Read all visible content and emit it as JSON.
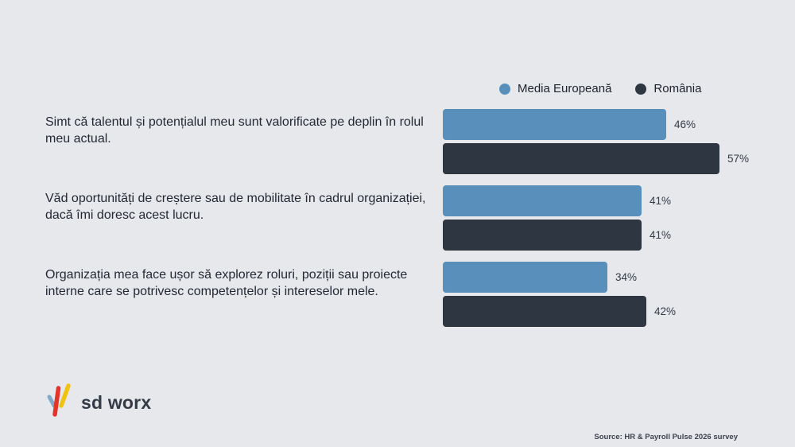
{
  "legend": {
    "items": [
      {
        "label": "Media Europeană",
        "color": "#5890bb"
      },
      {
        "label": "România",
        "color": "#2e3642"
      }
    ]
  },
  "chart_data": {
    "type": "bar",
    "orientation": "horizontal",
    "title": "",
    "unit": "%",
    "value_labels": true,
    "grid": false,
    "legend_position": "top-right",
    "xlim": [
      0,
      60
    ],
    "categories": [
      "Simt că talentul și potențialul meu sunt valorificate pe deplin în rolul meu actual.",
      "Văd oportunități de creștere sau de mobilitate în cadrul organizației, dacă îmi doresc acest lucru.",
      "Organizația mea face ușor să explorez roluri, poziții sau proiecte interne care se potrivesc competențelor și intereselor mele."
    ],
    "series": [
      {
        "name": "Media Europeană",
        "color": "#5890bb",
        "values": [
          46,
          41,
          34
        ]
      },
      {
        "name": "România",
        "color": "#2e3642",
        "values": [
          57,
          41,
          42
        ]
      }
    ]
  },
  "logo": {
    "text": "sd worx"
  },
  "source": "Source: HR & Payroll Pulse 2026 survey",
  "colors": {
    "background": "#e7e8ec",
    "bar_blue": "#5890bb",
    "bar_dark": "#2e3642",
    "text": "#232934",
    "logo_blue": "#82a8ca",
    "logo_red": "#e6332a",
    "logo_yellow": "#f0c310"
  }
}
